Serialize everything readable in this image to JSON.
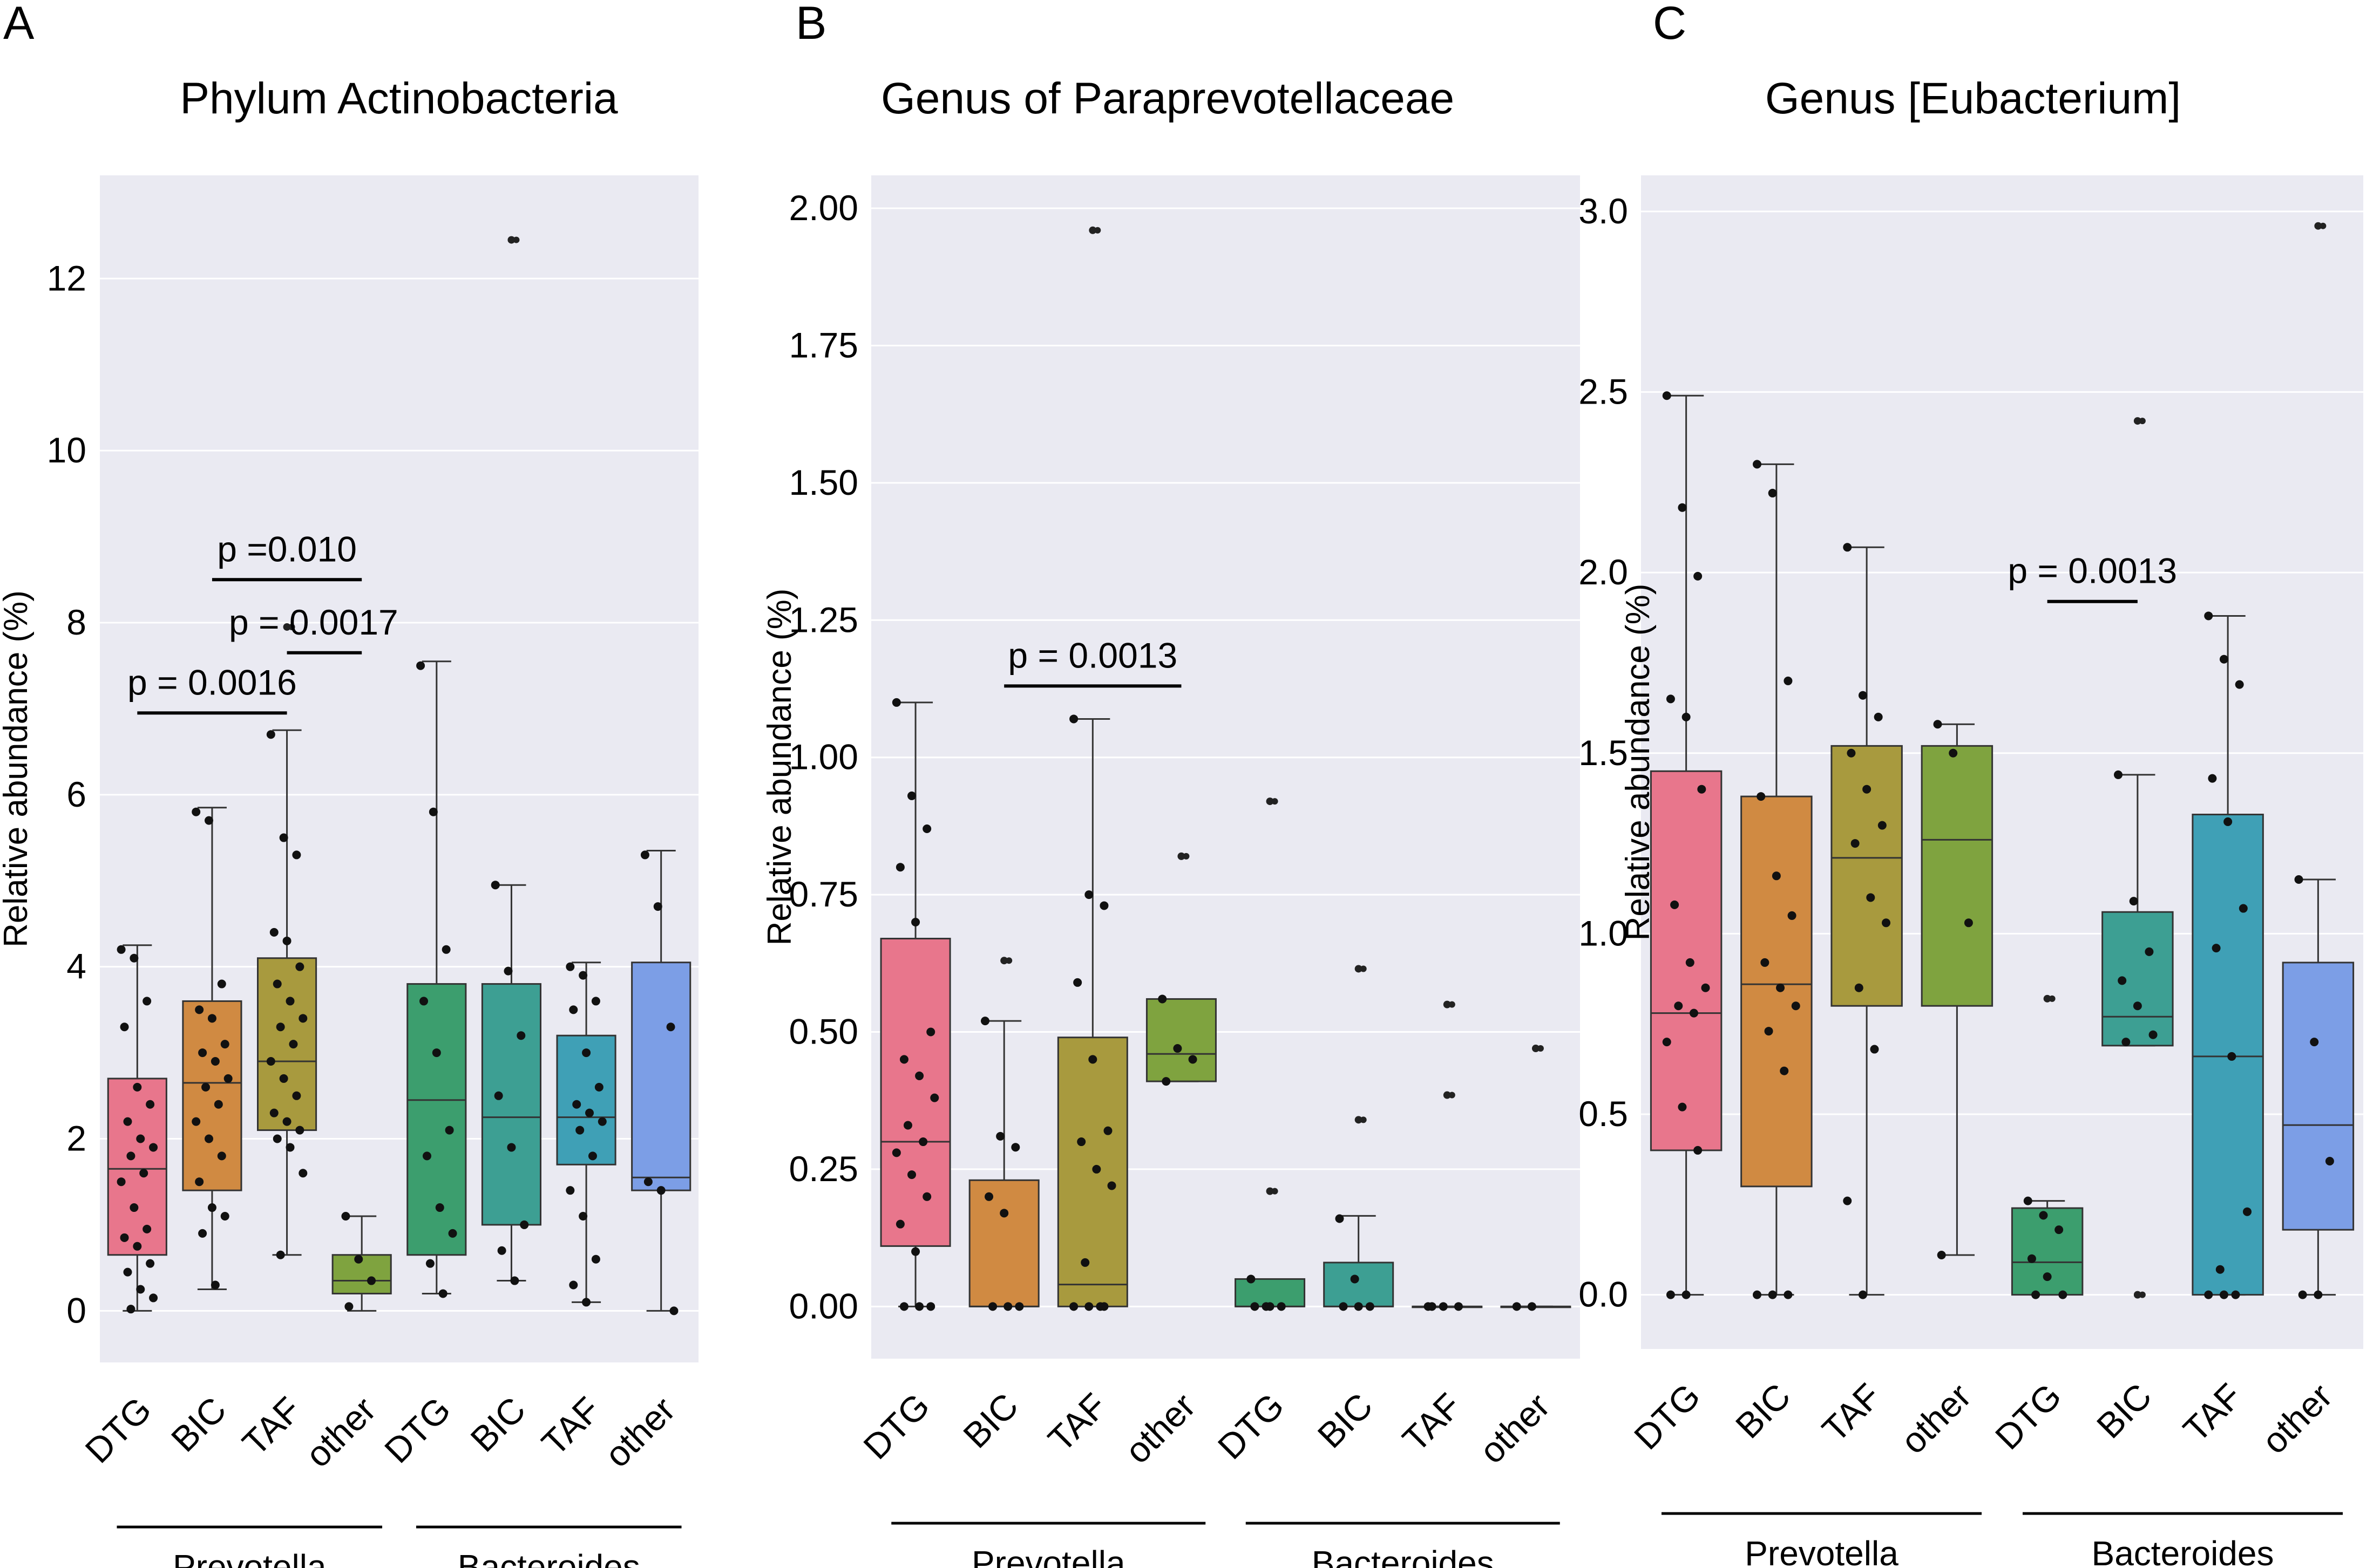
{
  "figure": {
    "panels": [
      {
        "letter": "A",
        "title": "Phylum Actinobacteria"
      },
      {
        "letter": "B",
        "title": "Genus of Paraprevotellaceae"
      },
      {
        "letter": "C",
        "title": "Genus [Eubacterium]"
      }
    ]
  },
  "chart_data": [
    {
      "type": "box",
      "title": "Phylum Actinobacteria",
      "panel": "A",
      "ylabel": "Relative abundance (%)",
      "ylim": [
        -0.6,
        13.2
      ],
      "yticks": [
        0,
        2,
        4,
        6,
        8,
        10,
        12
      ],
      "grid": true,
      "categories": [
        "DTG",
        "BIC",
        "TAF",
        "other",
        "DTG",
        "BIC",
        "TAF",
        "other"
      ],
      "groups": [
        {
          "name": "Prevotella",
          "from": 0,
          "to": 3
        },
        {
          "name": "Bacteroides",
          "from": 4,
          "to": 7
        }
      ],
      "colors": [
        "#e8768c",
        "#d08a42",
        "#a89a3e",
        "#7fa33f",
        "#3c9e6e",
        "#3d9f93",
        "#3fa0b6",
        "#7c9ee6"
      ],
      "boxes": [
        {
          "q1": 0.65,
          "median": 1.65,
          "q3": 2.7,
          "whislo": 0.0,
          "whishi": 4.25,
          "fliers": [],
          "points": [
            4.2,
            4.1,
            3.6,
            3.3,
            2.6,
            2.4,
            2.2,
            2.0,
            1.9,
            1.8,
            1.6,
            1.5,
            1.2,
            0.95,
            0.85,
            0.75,
            0.55,
            0.45,
            0.25,
            0.15,
            0.02
          ]
        },
        {
          "q1": 1.4,
          "median": 2.65,
          "q3": 3.6,
          "whislo": 0.25,
          "whishi": 5.85,
          "fliers": [],
          "points": [
            5.8,
            5.7,
            3.8,
            3.5,
            3.4,
            3.1,
            3.0,
            2.9,
            2.7,
            2.6,
            2.4,
            2.2,
            2.0,
            1.8,
            1.5,
            1.2,
            1.1,
            0.9,
            0.3
          ]
        },
        {
          "q1": 2.1,
          "median": 2.9,
          "q3": 4.1,
          "whislo": 0.65,
          "whishi": 6.75,
          "fliers": [
            7.95
          ],
          "points": [
            6.7,
            5.5,
            5.3,
            4.4,
            4.3,
            4.0,
            3.8,
            3.6,
            3.4,
            3.3,
            3.1,
            2.9,
            2.7,
            2.5,
            2.3,
            2.2,
            2.1,
            2.0,
            1.9,
            1.6,
            0.65
          ]
        },
        {
          "q1": 0.2,
          "median": 0.35,
          "q3": 0.65,
          "whislo": 0.0,
          "whishi": 1.1,
          "fliers": [],
          "points": [
            1.1,
            0.6,
            0.35,
            0.05
          ]
        },
        {
          "q1": 0.65,
          "median": 2.45,
          "q3": 3.8,
          "whislo": 0.2,
          "whishi": 7.55,
          "fliers": [],
          "points": [
            7.5,
            5.8,
            4.2,
            3.6,
            3.0,
            2.1,
            1.8,
            1.2,
            0.9,
            0.55,
            0.2
          ]
        },
        {
          "q1": 1.0,
          "median": 2.25,
          "q3": 3.8,
          "whislo": 0.35,
          "whishi": 4.95,
          "fliers": [
            12.45
          ],
          "points": [
            4.95,
            3.95,
            3.2,
            2.5,
            1.9,
            1.0,
            0.7,
            0.35
          ]
        },
        {
          "q1": 1.7,
          "median": 2.25,
          "q3": 3.2,
          "whislo": 0.1,
          "whishi": 4.05,
          "fliers": [],
          "points": [
            4.0,
            3.9,
            3.6,
            3.5,
            3.0,
            2.6,
            2.4,
            2.3,
            2.2,
            2.1,
            1.8,
            1.4,
            1.1,
            0.6,
            0.3,
            0.1
          ]
        },
        {
          "q1": 1.4,
          "median": 1.55,
          "q3": 4.05,
          "whislo": 0.0,
          "whishi": 5.35,
          "fliers": [],
          "points": [
            5.3,
            4.7,
            3.3,
            1.5,
            1.4,
            0.0
          ]
        }
      ],
      "annotations": [
        {
          "text": "p =0.010",
          "from": 1,
          "to": 3,
          "y": 8.5
        },
        {
          "text": "p = 0.0017",
          "from": 2,
          "to": 3,
          "y": 7.65
        },
        {
          "text": "p = 0.0016",
          "from": 0,
          "to": 2,
          "y": 6.95
        }
      ]
    },
    {
      "type": "box",
      "title": "Genus of Paraprevotellaceae",
      "panel": "B",
      "ylabel": "Relative abundance (%)",
      "ylim": [
        -0.095,
        2.06
      ],
      "yticks": [
        0.0,
        0.25,
        0.5,
        0.75,
        1.0,
        1.25,
        1.5,
        1.75,
        2.0
      ],
      "ytick_labels": [
        "0.00",
        "0.25",
        "0.50",
        "0.75",
        "1.00",
        "1.25",
        "1.50",
        "1.75",
        "2.00"
      ],
      "grid": true,
      "categories": [
        "DTG",
        "BIC",
        "TAF",
        "other",
        "DTG",
        "BIC",
        "TAF",
        "other"
      ],
      "groups": [
        {
          "name": "Prevotella",
          "from": 0,
          "to": 3
        },
        {
          "name": "Bacteroides",
          "from": 4,
          "to": 7
        }
      ],
      "colors": [
        "#e8768c",
        "#d08a42",
        "#a89a3e",
        "#7fa33f",
        "#3c9e6e",
        "#3d9f93",
        "#3fa0b6",
        "#7c9ee6"
      ],
      "boxes": [
        {
          "q1": 0.11,
          "median": 0.3,
          "q3": 0.67,
          "whislo": 0.0,
          "whishi": 1.1,
          "fliers": [],
          "points": [
            1.1,
            0.93,
            0.87,
            0.8,
            0.7,
            0.5,
            0.45,
            0.42,
            0.38,
            0.33,
            0.3,
            0.28,
            0.24,
            0.2,
            0.15,
            0.1,
            0.0,
            0.0,
            0.0
          ]
        },
        {
          "q1": 0.0,
          "median": 0.0,
          "q3": 0.23,
          "whislo": 0.0,
          "whishi": 0.52,
          "fliers": [
            0.63
          ],
          "points": [
            0.52,
            0.31,
            0.29,
            0.2,
            0.17,
            0.0,
            0.0,
            0.0
          ]
        },
        {
          "q1": 0.0,
          "median": 0.04,
          "q3": 0.49,
          "whislo": 0.0,
          "whishi": 1.07,
          "fliers": [
            1.96
          ],
          "points": [
            1.07,
            0.75,
            0.73,
            0.59,
            0.45,
            0.32,
            0.3,
            0.25,
            0.22,
            0.08,
            0.0,
            0.0,
            0.0,
            0.0
          ]
        },
        {
          "q1": 0.41,
          "median": 0.46,
          "q3": 0.56,
          "whislo": 0.41,
          "whishi": 0.56,
          "fliers": [
            0.82
          ],
          "points": [
            0.56,
            0.47,
            0.45,
            0.41
          ]
        },
        {
          "q1": 0.0,
          "median": 0.0,
          "q3": 0.05,
          "whislo": 0.0,
          "whishi": 0.05,
          "fliers": [
            0.92,
            0.21
          ],
          "points": [
            0.05,
            0.0,
            0.0,
            0.0,
            0.0
          ]
        },
        {
          "q1": 0.0,
          "median": 0.0,
          "q3": 0.08,
          "whislo": 0.0,
          "whishi": 0.165,
          "fliers": [
            0.615,
            0.34
          ],
          "points": [
            0.16,
            0.05,
            0.0,
            0.0,
            0.0
          ]
        },
        {
          "q1": 0.0,
          "median": 0.0,
          "q3": 0.0,
          "whislo": 0.0,
          "whishi": 0.0,
          "fliers": [
            0.55,
            0.385
          ],
          "points": [
            0.0,
            0.0,
            0.0,
            0.0
          ]
        },
        {
          "q1": 0.0,
          "median": 0.0,
          "q3": 0.0,
          "whislo": 0.0,
          "whishi": 0.0,
          "fliers": [
            0.47
          ],
          "points": [
            0.0,
            0.0
          ]
        }
      ],
      "annotations": [
        {
          "text": "p = 0.0013",
          "from": 1,
          "to": 3,
          "y": 1.13
        }
      ]
    },
    {
      "type": "box",
      "title": "Genus [Eubacterium]",
      "panel": "C",
      "ylabel": "Relative abundance (%)",
      "ylim": [
        -0.15,
        3.1
      ],
      "yticks": [
        0.0,
        0.5,
        1.0,
        1.5,
        2.0,
        2.5,
        3.0
      ],
      "ytick_labels": [
        "0.0",
        "0.5",
        "1.0",
        "1.5",
        "2.0",
        "2.5",
        "3.0"
      ],
      "grid": true,
      "categories": [
        "DTG",
        "BIC",
        "TAF",
        "other",
        "DTG",
        "BIC",
        "TAF",
        "other"
      ],
      "groups": [
        {
          "name": "Prevotella",
          "from": 0,
          "to": 3
        },
        {
          "name": "Bacteroides",
          "from": 4,
          "to": 7
        }
      ],
      "colors": [
        "#e8768c",
        "#d08a42",
        "#a89a3e",
        "#7fa33f",
        "#3c9e6e",
        "#3d9f93",
        "#3fa0b6",
        "#7c9ee6"
      ],
      "boxes": [
        {
          "q1": 0.4,
          "median": 0.78,
          "q3": 1.45,
          "whislo": 0.0,
          "whishi": 2.49,
          "fliers": [],
          "points": [
            2.49,
            2.18,
            1.99,
            1.65,
            1.6,
            1.4,
            1.08,
            0.92,
            0.85,
            0.8,
            0.78,
            0.7,
            0.52,
            0.4,
            0.0,
            0.0
          ]
        },
        {
          "q1": 0.3,
          "median": 0.86,
          "q3": 1.38,
          "whislo": 0.0,
          "whishi": 2.3,
          "fliers": [],
          "points": [
            2.3,
            2.22,
            1.7,
            1.38,
            1.16,
            1.05,
            0.92,
            0.85,
            0.8,
            0.73,
            0.62,
            0.0,
            0.0,
            0.0
          ]
        },
        {
          "q1": 0.8,
          "median": 1.21,
          "q3": 1.52,
          "whislo": 0.0,
          "whishi": 2.07,
          "fliers": [],
          "points": [
            2.07,
            1.66,
            1.6,
            1.5,
            1.4,
            1.3,
            1.25,
            1.1,
            1.03,
            0.85,
            0.68,
            0.26,
            0.0
          ]
        },
        {
          "q1": 0.8,
          "median": 1.26,
          "q3": 1.52,
          "whislo": 0.11,
          "whishi": 1.58,
          "fliers": [],
          "points": [
            1.58,
            1.5,
            1.03,
            0.11
          ]
        },
        {
          "q1": 0.0,
          "median": 0.09,
          "q3": 0.24,
          "whislo": 0.0,
          "whishi": 0.26,
          "fliers": [
            0.82
          ],
          "points": [
            0.26,
            0.22,
            0.18,
            0.1,
            0.05,
            0.0,
            0.0
          ]
        },
        {
          "q1": 0.69,
          "median": 0.77,
          "q3": 1.06,
          "whislo": 0.69,
          "whishi": 1.44,
          "fliers": [
            2.42,
            0.0
          ],
          "points": [
            1.44,
            1.09,
            0.95,
            0.87,
            0.8,
            0.72,
            0.7
          ]
        },
        {
          "q1": 0.0,
          "median": 0.66,
          "q3": 1.33,
          "whislo": 0.0,
          "whishi": 1.88,
          "fliers": [],
          "points": [
            1.88,
            1.76,
            1.69,
            1.43,
            1.31,
            1.07,
            0.96,
            0.66,
            0.23,
            0.07,
            0.0,
            0.0,
            0.0
          ]
        },
        {
          "q1": 0.18,
          "median": 0.47,
          "q3": 0.92,
          "whislo": 0.0,
          "whishi": 1.15,
          "fliers": [
            2.96
          ],
          "points": [
            1.15,
            0.7,
            0.37,
            0.0,
            0.0
          ]
        }
      ],
      "annotations": [
        {
          "text": "p = 0.0013",
          "from": 4,
          "to": 5,
          "y": 1.92
        }
      ]
    }
  ]
}
